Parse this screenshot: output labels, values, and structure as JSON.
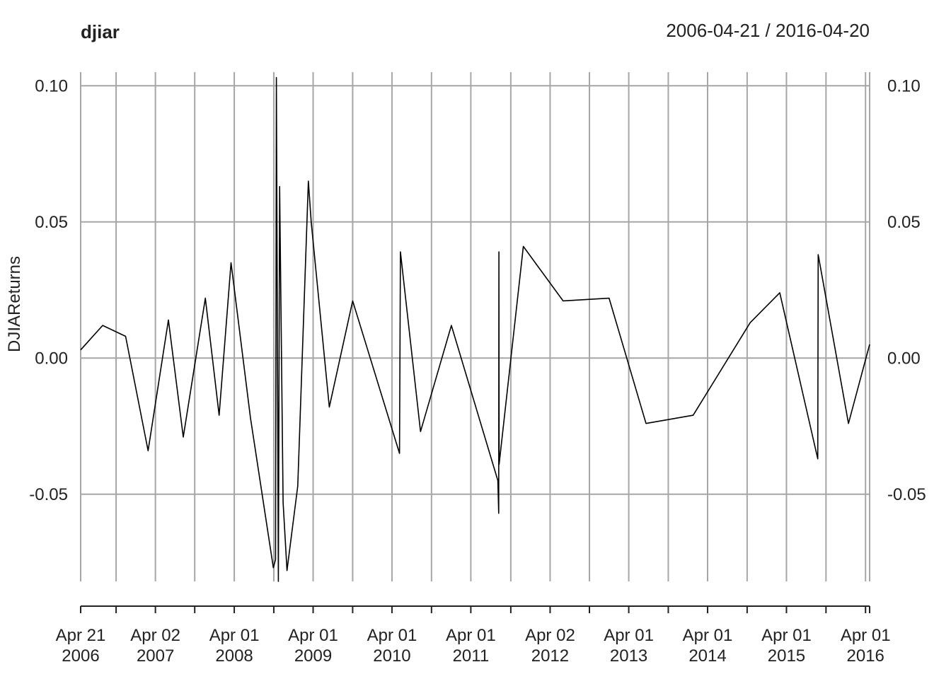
{
  "chart_data": {
    "type": "line",
    "title": "djiar",
    "date_range_label": "2006-04-21 / 2016-04-20",
    "xlabel": "",
    "ylabel": "DJIAReturns",
    "ylim": [
      -0.082,
      0.105
    ],
    "y_ticks": [
      -0.05,
      0.0,
      0.05,
      0.1
    ],
    "y_tick_labels": [
      "-0.05",
      "0.00",
      "0.05",
      "0.10"
    ],
    "xlim": [
      "2006-04-21",
      "2016-04-20"
    ],
    "x_ticks": [
      {
        "date": "2006-04-21",
        "label": [
          "Apr 21",
          "2006"
        ]
      },
      {
        "date": "2007-04-02",
        "label": [
          "Apr 02",
          "2007"
        ]
      },
      {
        "date": "2008-04-01",
        "label": [
          "Apr 01",
          "2008"
        ]
      },
      {
        "date": "2009-04-01",
        "label": [
          "Apr 01",
          "2009"
        ]
      },
      {
        "date": "2010-04-01",
        "label": [
          "Apr 01",
          "2010"
        ]
      },
      {
        "date": "2011-04-01",
        "label": [
          "Apr 01",
          "2011"
        ]
      },
      {
        "date": "2012-04-02",
        "label": [
          "Apr 02",
          "2012"
        ]
      },
      {
        "date": "2013-04-01",
        "label": [
          "Apr 01",
          "2013"
        ]
      },
      {
        "date": "2014-04-01",
        "label": [
          "Apr 01",
          "2014"
        ]
      },
      {
        "date": "2015-04-01",
        "label": [
          "Apr 01",
          "2015"
        ]
      },
      {
        "date": "2016-04-01",
        "label": [
          "Apr 01",
          "2016"
        ]
      }
    ],
    "minor_ticks": [
      "2006-10-02",
      "2007-10-01",
      "2008-10-01",
      "2009-10-01",
      "2010-10-01",
      "2011-10-03",
      "2012-10-01",
      "2013-10-01",
      "2014-10-01",
      "2015-10-01"
    ],
    "grid": true,
    "series": [
      {
        "color": "#000000",
        "x": [
          "2006-04-21",
          "2006-08-01",
          "2006-11-15",
          "2007-02-27",
          "2007-06-01",
          "2007-08-09",
          "2007-11-19",
          "2008-01-22",
          "2008-03-17",
          "2008-06-15",
          "2008-09-29",
          "2008-10-09",
          "2008-10-13",
          "2008-10-22",
          "2008-10-28",
          "2008-11-13",
          "2008-12-01",
          "2009-01-20",
          "2009-03-10",
          "2009-03-23",
          "2009-06-15",
          "2009-10-01",
          "2010-05-06",
          "2010-05-10",
          "2010-08-11",
          "2011-01-01",
          "2011-08-04",
          "2011-08-08",
          "2011-08-09",
          "2011-08-10",
          "2011-11-30",
          "2012-06-01",
          "2012-12-31",
          "2013-06-20",
          "2014-01-24",
          "2014-10-15",
          "2015-03-01",
          "2015-08-24",
          "2015-08-26",
          "2016-01-13",
          "2016-04-20"
        ],
        "y": [
          0.003,
          0.012,
          0.008,
          -0.034,
          0.014,
          -0.029,
          0.022,
          -0.021,
          0.035,
          -0.022,
          -0.077,
          -0.074,
          0.103,
          -0.082,
          0.063,
          -0.053,
          -0.078,
          -0.047,
          0.065,
          0.05,
          -0.018,
          0.021,
          -0.035,
          0.039,
          -0.027,
          0.012,
          -0.045,
          -0.057,
          0.039,
          -0.039,
          0.041,
          0.021,
          0.022,
          -0.024,
          -0.021,
          0.013,
          0.024,
          -0.037,
          0.038,
          -0.024,
          0.005
        ]
      }
    ]
  }
}
